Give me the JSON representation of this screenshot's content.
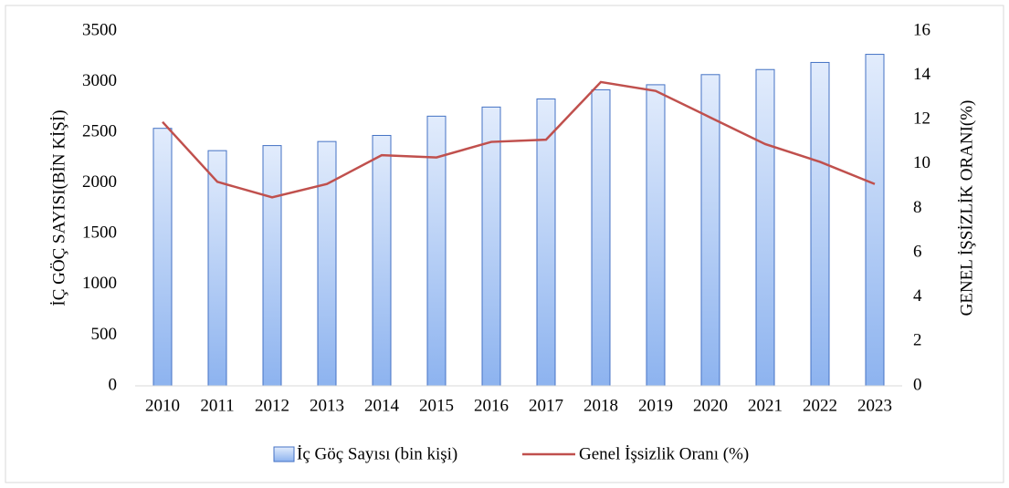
{
  "chart_data": {
    "type": "bar_line",
    "categories": [
      "2010",
      "2011",
      "2012",
      "2013",
      "2014",
      "2015",
      "2016",
      "2017",
      "2018",
      "2019",
      "2020",
      "2021",
      "2022",
      "2023"
    ],
    "series": [
      {
        "name": "İç Göç Sayısı (bin kişi)",
        "type": "bar",
        "color": "#4472c4",
        "values": [
          2540,
          2320,
          2370,
          2410,
          2470,
          2660,
          2750,
          2830,
          2920,
          2970,
          3070,
          3120,
          3190,
          3270
        ]
      },
      {
        "name": "Genel İşsizlik Oranı (%)",
        "type": "line",
        "axis": "y2",
        "color": "#c0504d",
        "values": [
          11.9,
          9.2,
          8.5,
          9.1,
          10.4,
          10.3,
          11.0,
          11.1,
          13.7,
          13.3,
          12.1,
          10.9,
          10.1,
          9.1
        ]
      }
    ],
    "ylabel": "İÇ GÖÇ SAYISI(BİN KİŞİ)",
    "y2label": "GENEL  İŞSİZLİK ORANI(%)",
    "ylim": [
      0,
      3500
    ],
    "yticks": [
      0,
      500,
      1000,
      1500,
      2000,
      2500,
      3000,
      3500
    ],
    "y2lim": [
      0,
      16
    ],
    "y2ticks": [
      0,
      2,
      4,
      6,
      8,
      10,
      12,
      14,
      16
    ],
    "grid": false,
    "legend": "bottom"
  }
}
